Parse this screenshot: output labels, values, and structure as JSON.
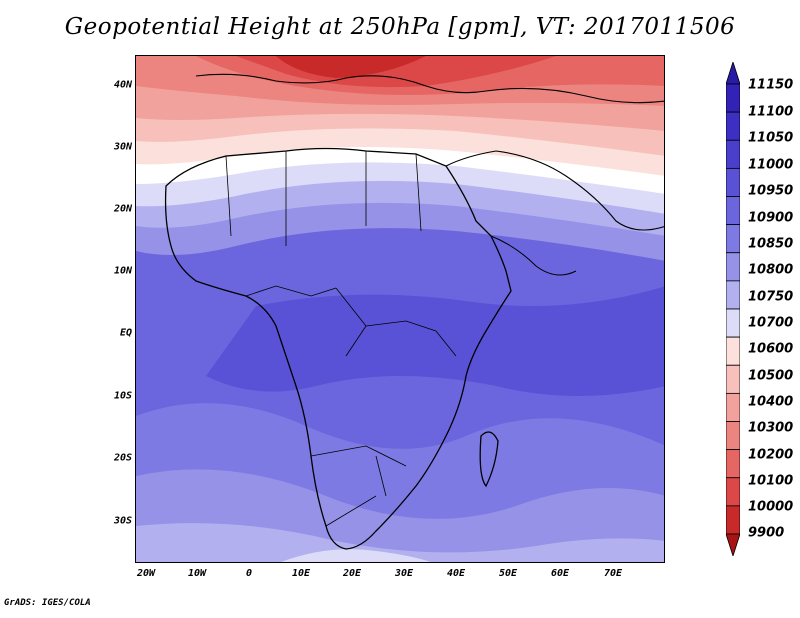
{
  "title": "Geopotential Height at 250hPa [gpm], VT: 2017011506",
  "lat_labels": [
    "40N",
    "30N",
    "20N",
    "10N",
    "EQ",
    "10S",
    "20S",
    "30S"
  ],
  "lon_labels": [
    "20W",
    "10W",
    "0",
    "10E",
    "20E",
    "30E",
    "40E",
    "50E",
    "60E",
    "70E"
  ],
  "colorbar": {
    "labels": [
      "11150",
      "11100",
      "11050",
      "11000",
      "10950",
      "10900",
      "10850",
      "10800",
      "10750",
      "10700",
      "10600",
      "10500",
      "10400",
      "10300",
      "10200",
      "10100",
      "10000",
      "9900"
    ],
    "colors": [
      "#2a1aa8",
      "#3322b6",
      "#3d2fc4",
      "#4a3fcd",
      "#5a52d6",
      "#6b66de",
      "#7e7ae3",
      "#9592e8",
      "#b3b0f0",
      "#dcdcf8",
      "#fbe0dc",
      "#f7c0ba",
      "#f2a29c",
      "#ec8480",
      "#e66664",
      "#dc4848",
      "#c82a2a",
      "#a81414"
    ]
  },
  "credit": "GrADS: IGES/COLA",
  "map": {
    "field": "geopotential height 250hPa",
    "extent": {
      "lon_min": -25,
      "lon_max": 78,
      "lat_min": -37,
      "lat_max": 45
    }
  }
}
